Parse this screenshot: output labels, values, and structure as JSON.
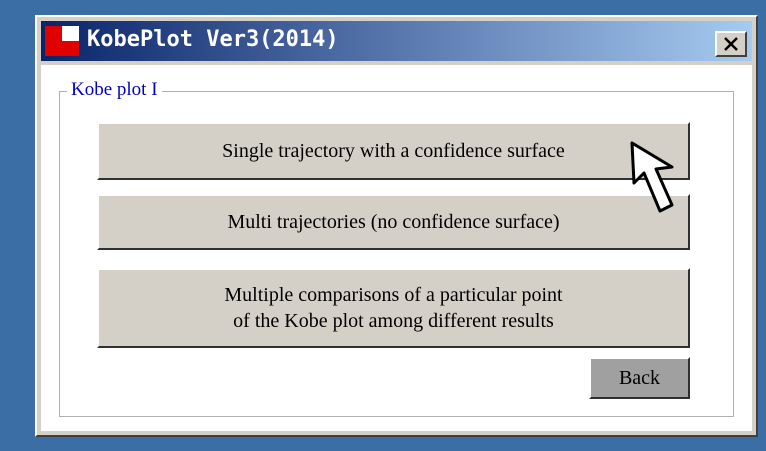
{
  "window": {
    "title": "KobePlot Ver3(2014)"
  },
  "group": {
    "label": "Kobe plot I"
  },
  "buttons": [
    {
      "lines": [
        "Single trajectory with a confidence surface"
      ]
    },
    {
      "lines": [
        "Multi trajectories (no confidence surface)"
      ]
    },
    {
      "lines": [
        "Multiple comparisons of a particular point",
        "of the Kobe plot among different results"
      ]
    }
  ],
  "back": "Back"
}
